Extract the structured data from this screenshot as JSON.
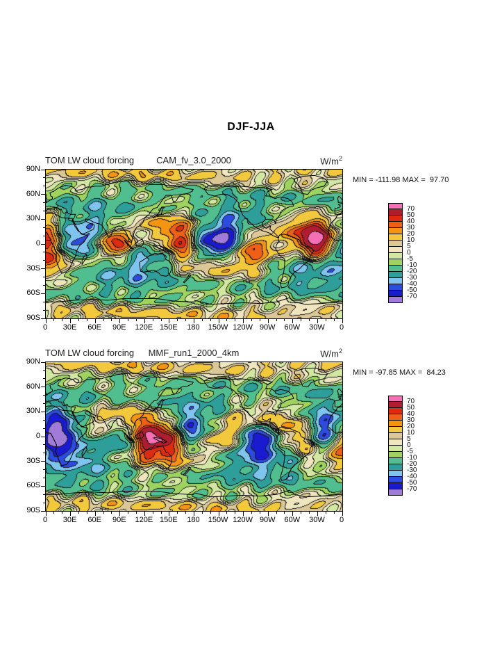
{
  "title": "DJF-JJA",
  "panels": [
    {
      "variable_title": "TOM LW cloud forcing",
      "dataset_title": "CAM_fv_3.0_2000",
      "units_base": "W/m",
      "units_exp": "2",
      "stats": "MIN = -111.98 MAX =  97.70"
    },
    {
      "variable_title": "TOM LW cloud forcing",
      "dataset_title": "MMF_run1_2000_4km",
      "units_base": "W/m",
      "units_exp": "2",
      "stats": "MIN = -97.85 MAX =  84.23"
    }
  ],
  "axes": {
    "lat_labels": [
      "90N",
      "60N",
      "30N",
      "0",
      "30S",
      "60S",
      "90S"
    ],
    "lon_labels": [
      "0",
      "30E",
      "60E",
      "90E",
      "120E",
      "150E",
      "180",
      "150W",
      "120W",
      "90W",
      "60W",
      "30W",
      "0"
    ]
  },
  "colorbar": {
    "labels_top_to_bottom": [
      "70",
      "50",
      "40",
      "30",
      "20",
      "10",
      "5",
      "0",
      "-5",
      "-10",
      "-20",
      "-30",
      "-40",
      "-50",
      "-70"
    ],
    "colors_low_to_high": [
      "#A07CD8",
      "#1A1AD0",
      "#2C4BE0",
      "#7EC4EE",
      "#2E9E9B",
      "#50BE8E",
      "#9ED360",
      "#D2E8A2",
      "#EFE6C0",
      "#DCC896",
      "#F2C83C",
      "#F59312",
      "#EE5F18",
      "#DE2A10",
      "#B01C30",
      "#F46FB5"
    ]
  },
  "chart_data": {
    "type": "heatmap",
    "subtype": "filled_contour_world_map",
    "figure_title": "DJF-JJA",
    "variable": "TOM LW cloud forcing",
    "units": "W/m2",
    "projection": "equirectangular cylindrical equidistant",
    "lon_range_deg_east": [
      0,
      360
    ],
    "lat_range": [
      -90,
      90
    ],
    "contour_levels": [
      -70,
      -50,
      -40,
      -30,
      -20,
      -10,
      -5,
      0,
      5,
      10,
      20,
      30,
      40,
      50,
      70
    ],
    "lat_tick_labels": [
      "90N",
      "60N",
      "30N",
      "0",
      "30S",
      "60S",
      "90S"
    ],
    "lon_tick_labels": [
      "0",
      "30E",
      "60E",
      "90E",
      "120E",
      "150E",
      "180",
      "150W",
      "120W",
      "90W",
      "60W",
      "30W",
      "0"
    ],
    "panels": [
      {
        "dataset": "CAM_fv_3.0_2000",
        "min": -111.98,
        "max": 97.7
      },
      {
        "dataset": "MMF_run1_2000_4km",
        "min": -97.85,
        "max": 84.23
      }
    ],
    "colorbar_position": "right",
    "grid": false
  }
}
